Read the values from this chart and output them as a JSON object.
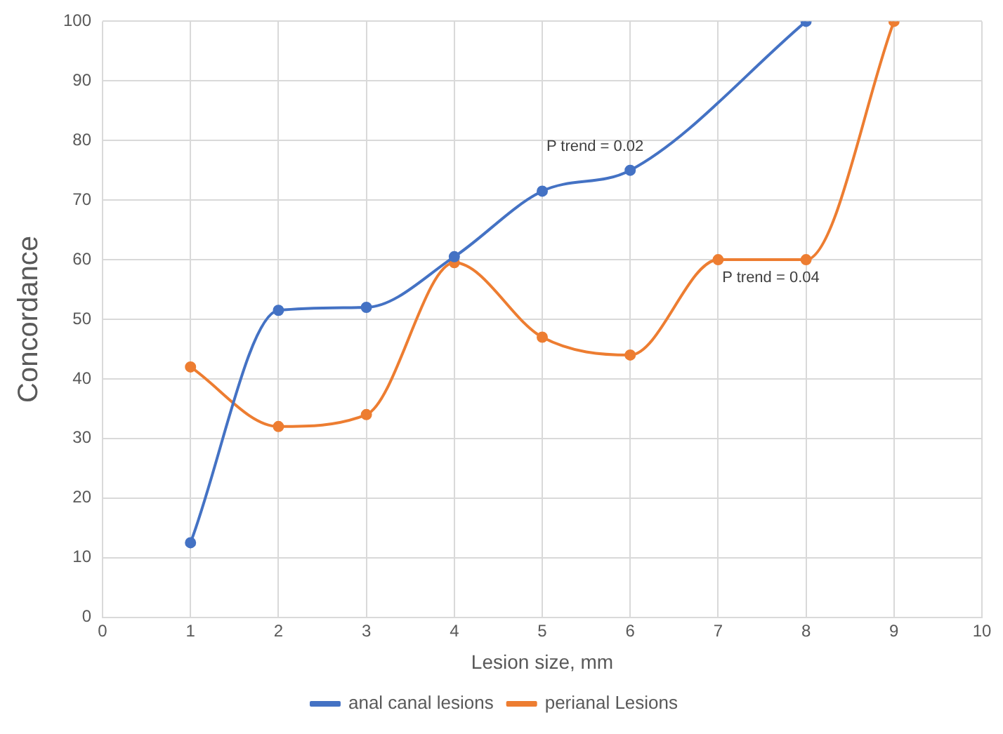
{
  "chart_data": {
    "type": "line",
    "xlabel": "Lesion size, mm",
    "ylabel": "Concordance",
    "xlim": [
      0,
      10
    ],
    "xticks": [
      0,
      1,
      2,
      3,
      4,
      5,
      6,
      7,
      8,
      9,
      10
    ],
    "ylim": [
      0,
      100
    ],
    "yticks": [
      0,
      10,
      20,
      30,
      40,
      50,
      60,
      70,
      80,
      90,
      100
    ],
    "grid": true,
    "legend": "bottom",
    "marker": "circle",
    "line_style": "solid",
    "series": [
      {
        "name": "anal canal lesions",
        "color": "#4472c4",
        "x": [
          1,
          2,
          3,
          4,
          5,
          6,
          8
        ],
        "values": [
          12.5,
          51.5,
          52,
          60.5,
          71.5,
          75,
          100
        ]
      },
      {
        "name": "perianal Lesions",
        "color": "#ed7d31",
        "x": [
          1,
          2,
          3,
          4,
          5,
          6,
          7,
          8,
          9
        ],
        "values": [
          42,
          32,
          34,
          59.5,
          47,
          44,
          60,
          60,
          100
        ]
      }
    ],
    "annotations": [
      "P trend = 0.02",
      "P trend = 0.04"
    ]
  }
}
